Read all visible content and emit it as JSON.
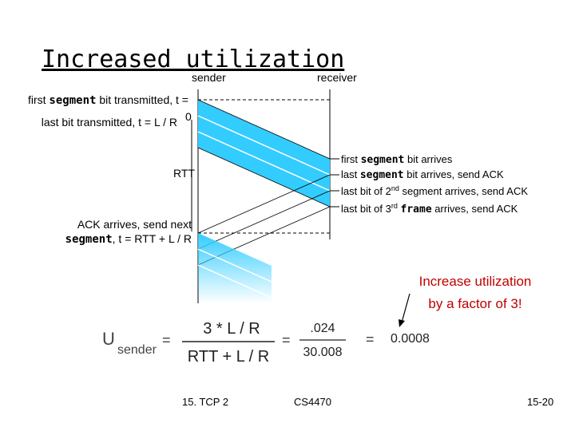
{
  "title": "Increased utilization",
  "sender_label": "sender",
  "receiver_label": "receiver",
  "left_notes": [
    [
      "first ",
      "segment",
      " bit transmitted, t = ",
      "0"
    ],
    [
      "last bit transmitted, t = L / R"
    ],
    [
      "ACK arrives, send next"
    ],
    [
      "segment",
      ", t = RTT + L / R"
    ]
  ],
  "rtt_label": "RTT",
  "right_notes": [
    [
      "first ",
      "segment",
      " bit arrives"
    ],
    [
      "last ",
      "segment",
      " bit arrives, send ACK"
    ],
    [
      "last bit of 2",
      "nd",
      " segment arrives, send ACK"
    ],
    [
      "last bit of 3",
      "rd",
      " ",
      "frame",
      " arrives, send ACK"
    ]
  ],
  "callout": [
    "Increase utilization",
    "by a factor of 3!"
  ],
  "equation": {
    "u": "U",
    "u_sub": "sender",
    "eq1": "=",
    "numerator": "3 * L / R",
    "denominator": "RTT + L / R",
    "eq2": "=",
    "num_value": ".024",
    "den_value": "30.008",
    "eq3": "=",
    "result": "0.0008"
  },
  "footer": {
    "left": "15. TCP 2",
    "center": "CS4470",
    "right": "15-20"
  }
}
